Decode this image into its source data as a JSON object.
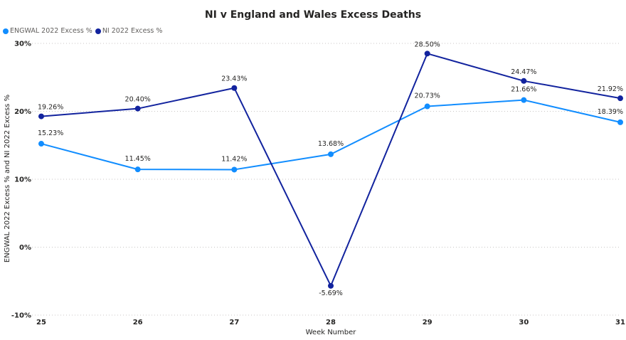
{
  "chart_data": {
    "type": "line",
    "title": "NI v England and Wales Excess Deaths",
    "xlabel": "Week Number",
    "ylabel": "ENGWAL 2022 Excess % and NI 2022 Excess %",
    "categories": [
      "25",
      "26",
      "27",
      "28",
      "29",
      "30",
      "31"
    ],
    "y_ticks": [
      "30%",
      "20%",
      "10%",
      "0%",
      "-10%"
    ],
    "ylim": [
      -10,
      30
    ],
    "grid": true,
    "legend_position": "top-left",
    "series": [
      {
        "name": "ENGWAL 2022 Excess %",
        "color": "#118dff",
        "values": [
          15.23,
          11.45,
          11.42,
          13.68,
          20.73,
          21.66,
          18.39
        ],
        "labels": [
          "15.23%",
          "11.45%",
          "11.42%",
          "13.68%",
          "20.73%",
          "21.66%",
          "18.39%"
        ]
      },
      {
        "name": "NI 2022 Excess %",
        "color": "#12239e",
        "values": [
          19.26,
          20.4,
          23.43,
          -5.69,
          28.5,
          24.47,
          21.92
        ],
        "labels": [
          "19.26%",
          "20.40%",
          "23.43%",
          "-5.69%",
          "28.50%",
          "24.47%",
          "21.92%"
        ]
      }
    ]
  }
}
